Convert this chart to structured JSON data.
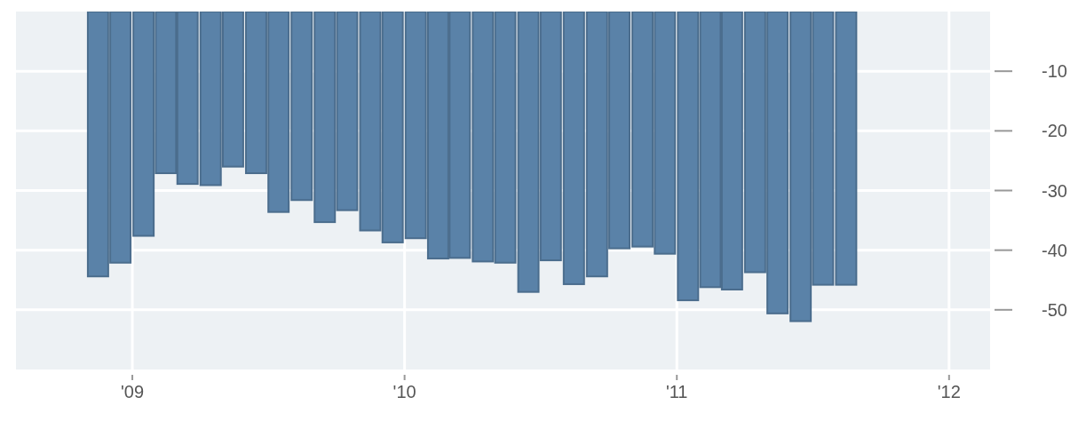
{
  "chart_data": {
    "type": "bar",
    "x": [
      "2008-11-16",
      "2008-12-16",
      "2009-01-16",
      "2009-02-15",
      "2009-03-16",
      "2009-04-16",
      "2009-05-16",
      "2009-06-16",
      "2009-07-16",
      "2009-08-16",
      "2009-09-16",
      "2009-10-16",
      "2009-11-16",
      "2009-12-16",
      "2010-01-16",
      "2010-02-15",
      "2010-03-16",
      "2010-04-16",
      "2010-05-16",
      "2010-06-16",
      "2010-07-16",
      "2010-08-16",
      "2010-09-16",
      "2010-10-16",
      "2010-11-16",
      "2010-12-16",
      "2011-01-16",
      "2011-02-15",
      "2011-03-16",
      "2011-04-16",
      "2011-05-16",
      "2011-06-16",
      "2011-07-16",
      "2011-08-16"
    ],
    "values": [
      -44.4,
      -42.1,
      -37.6,
      -27.1,
      -28.9,
      -29.1,
      -26,
      -27.1,
      -33.6,
      -31.6,
      -35.3,
      -33.3,
      -36.7,
      -38.7,
      -38,
      -41.4,
      -41.3,
      -41.9,
      -42.1,
      -47,
      -41.7,
      -45.7,
      -44.4,
      -39.7,
      -39.4,
      -40.6,
      -48.4,
      -46.2,
      -46.6,
      -43.7,
      -50.6,
      -51.9,
      -45.8,
      -45.8
    ],
    "color": "#5a82a8",
    "xlim": [
      "2008-07-29",
      "2012-02-25"
    ],
    "xticks": [
      {
        "value": "2009",
        "label": "'09"
      },
      {
        "value": "2010",
        "label": "'10"
      },
      {
        "value": "2011",
        "label": "'11"
      },
      {
        "value": "2012",
        "label": "'12"
      }
    ],
    "ylim": [
      -60,
      0
    ],
    "yticks": [
      -10,
      -20,
      -30,
      -40,
      -50
    ],
    "grid": true
  }
}
